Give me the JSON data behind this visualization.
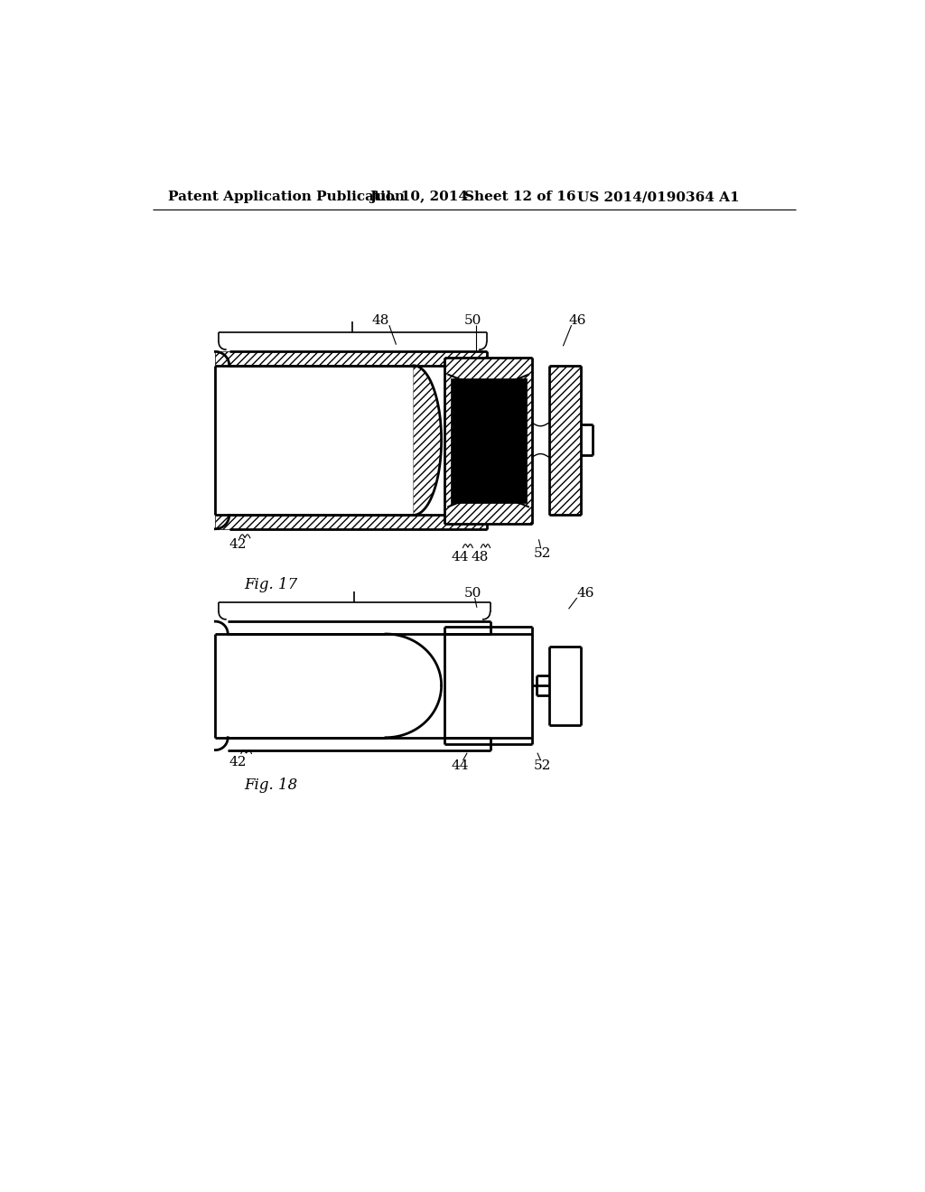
{
  "background_color": "#ffffff",
  "header_text": "Patent Application Publication",
  "header_date": "Jul. 10, 2014",
  "header_sheet": "Sheet 12 of 16",
  "header_patent": "US 2014/0190364 A1",
  "header_fontsize": 11,
  "fig17_label": "Fig. 17",
  "fig18_label": "Fig. 18",
  "label_fontsize": 11
}
